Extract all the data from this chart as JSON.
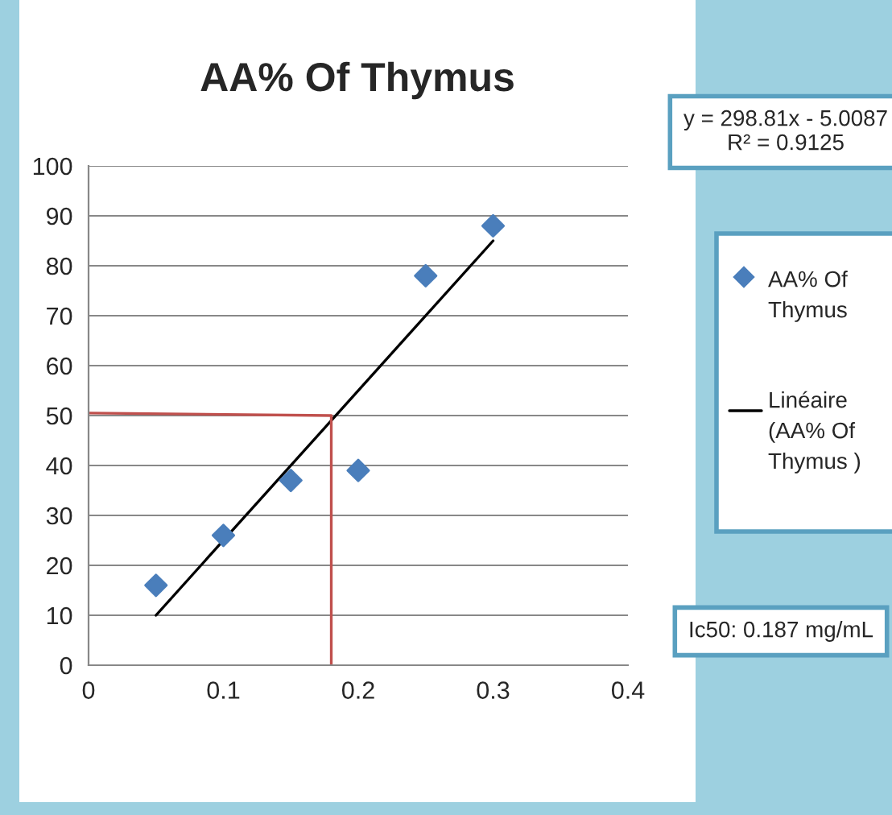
{
  "chart_data": {
    "type": "scatter",
    "title": "AA% Of Thymus",
    "series": [
      {
        "name": "AA% Of Thymus",
        "color": "#4a7ebb",
        "marker": "diamond",
        "x": [
          0.05,
          0.1,
          0.15,
          0.2,
          0.25,
          0.3
        ],
        "values": [
          16,
          26,
          37,
          39,
          78,
          88
        ]
      },
      {
        "name": "Linéaire (AA% Of Thymus )",
        "type": "line",
        "color": "#000000",
        "x": [
          0.05,
          0.3
        ],
        "values": [
          10,
          85
        ]
      },
      {
        "type": "line",
        "color": "#c0504d",
        "x": [
          0,
          0.18,
          0.18
        ],
        "values": [
          50.5,
          50,
          0
        ]
      }
    ],
    "xlim": [
      0,
      0.4
    ],
    "xticks": [
      0,
      0.1,
      0.2,
      0.3,
      0.4
    ],
    "ylim": [
      0,
      100
    ],
    "yticks": [
      0,
      10,
      20,
      30,
      40,
      50,
      60,
      70,
      80,
      90,
      100
    ],
    "grid": "y",
    "legend": "right",
    "annotations": [
      "y = 298.81x - 5.0087\nR² = 0.9125",
      "Ic50: 0.187 mg/mL"
    ]
  }
}
